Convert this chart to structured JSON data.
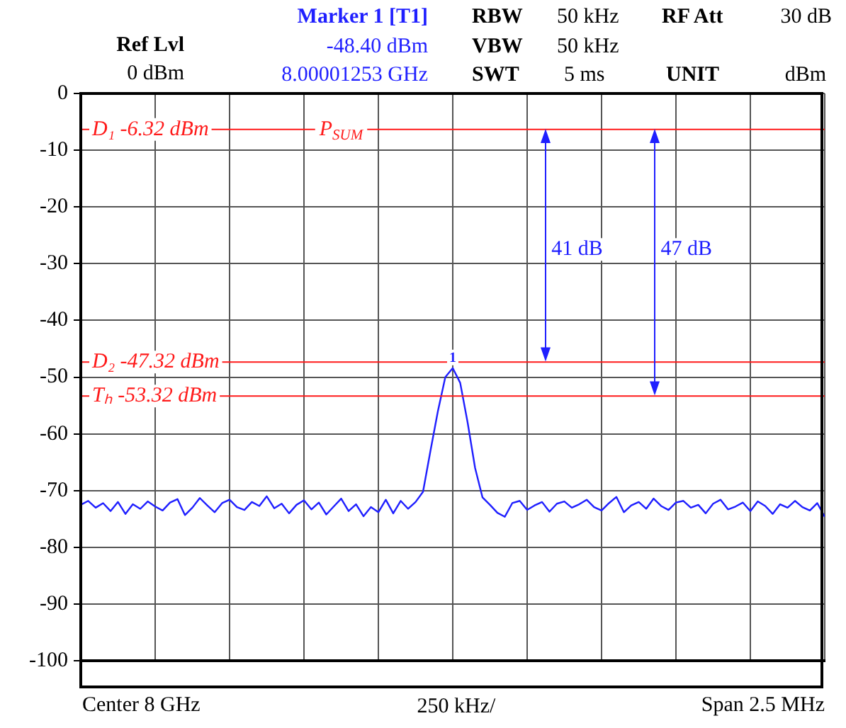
{
  "chart_data": {
    "type": "line",
    "annotations": [
      "Ref Lvl",
      "0 dBm",
      "Marker  1 [T1]",
      "-48.40 dBm",
      "8.00001253 GHz",
      "RBW",
      "50 kHz",
      "RF Att",
      "30 dB",
      "VBW",
      "50 kHz",
      "SWT",
      "5 ms",
      "UNIT",
      "dBm",
      "Center 8 GHz",
      "250 kHz/",
      "Span 2.5 MHz",
      {
        "text": "P$_{SUM}$",
        "y": -6.32
      },
      {
        "text": "41 dB",
        "y": -27.5
      },
      {
        "text": "47 dB",
        "y": -27.5
      },
      {
        "text": "1",
        "y": -48.4
      }
    ],
    "categories": [
      null,
      null,
      null,
      null,
      null,
      null,
      null,
      null,
      null,
      null,
      null,
      null,
      null,
      null,
      null,
      null,
      null,
      null,
      null,
      null,
      null,
      null,
      null,
      null,
      null,
      null,
      null,
      null,
      null,
      null,
      null,
      null,
      null,
      null,
      null,
      null,
      null,
      null,
      null,
      null,
      null,
      null,
      null,
      null,
      null,
      null,
      null,
      null,
      null,
      null,
      null,
      null,
      null,
      null,
      null,
      null,
      null,
      null,
      null,
      null,
      null,
      null,
      null,
      null,
      null,
      null,
      null,
      null,
      null,
      null,
      null,
      null,
      null,
      null,
      null,
      null,
      null,
      null,
      null,
      null,
      null,
      null,
      null,
      null,
      null,
      null,
      null,
      null,
      null,
      null,
      null,
      null,
      null,
      null,
      null,
      null,
      null,
      null,
      null,
      null,
      null
    ],
    "series": [
      {
        "color": "#1f1fff",
        "values": [
          -72.5,
          -71.8,
          -73.0,
          -72.2,
          -73.6,
          -72.0,
          -74.1,
          -72.4,
          -73.2,
          -71.9,
          -72.8,
          -73.5,
          -72.1,
          -71.5,
          -74.3,
          -73.0,
          -71.3,
          -72.6,
          -73.8,
          -72.2,
          -71.6,
          -72.9,
          -73.4,
          -72.0,
          -72.7,
          -71.0,
          -73.1,
          -72.3,
          -74.0,
          -72.5,
          -71.7,
          -73.3,
          -72.1,
          -74.2,
          -72.8,
          -71.4,
          -73.6,
          -72.4,
          -74.5,
          -72.9,
          -73.8,
          -71.6,
          -74.0,
          -71.8,
          -73.2,
          -72.0,
          -70.2,
          -63,
          -56,
          -50,
          -48.4,
          -51,
          -58,
          -66,
          -71.2,
          -72.5,
          -73.9,
          -74.6,
          -72.2,
          -71.8,
          -73.4,
          -72.6,
          -72.0,
          -73.7,
          -72.3,
          -71.9,
          -73.0,
          -72.4,
          -71.6,
          -72.9,
          -73.5,
          -72.2,
          -71.1,
          -73.8,
          -72.6,
          -72.0,
          -73.2,
          -71.4,
          -72.7,
          -73.4,
          -72.1,
          -71.8,
          -73.0,
          -72.5,
          -74.0,
          -72.3,
          -71.6,
          -73.3,
          -72.8,
          -72.1,
          -73.6,
          -71.9,
          -72.7,
          -74.1,
          -72.4,
          -73.0,
          -71.8,
          -72.9,
          -73.5,
          -72.2,
          -74.6
        ]
      }
    ],
    "ylim": [
      -100,
      0
    ],
    "yticks": [
      0,
      -10,
      -20,
      -30,
      -40,
      -50,
      -60,
      -70,
      -80,
      -90,
      -100
    ],
    "ref_lines": [
      {
        "axis": "y",
        "value": -6.32,
        "label": "D₁ -6.32 dBm",
        "color": "#ff1a1a"
      },
      {
        "axis": "y",
        "value": -47.32,
        "label": "D₂ -47.32 dBm",
        "color": "#ff1a1a"
      },
      {
        "axis": "y",
        "value": -53.32,
        "label": "Tₕ -53.32 dBm",
        "color": "#ff1a1a"
      }
    ],
    "grid": true,
    "marker": "none",
    "line_style": "solid"
  }
}
